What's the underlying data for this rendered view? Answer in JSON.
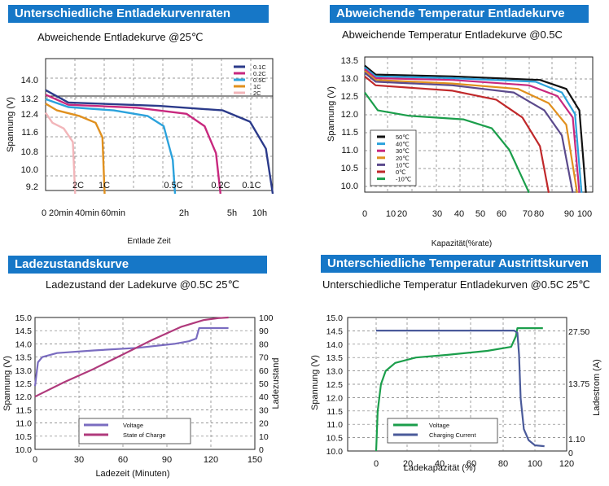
{
  "panels": [
    {
      "banner": "Unterschiedliche Entladekurvenraten",
      "subtitle": "Abweichende Entladekurve @25℃",
      "chart_data": {
        "type": "line",
        "title": "Abweichende Entladekurve @25℃",
        "xlabel": "Entlade Zeit",
        "ylabel": "Spannung (V)",
        "x_tick_labels": [
          "0",
          "20min",
          "40min",
          "60min",
          "2h",
          "5h",
          "10h"
        ],
        "y_tick_labels": [
          "14.0",
          "13.2",
          "12.4",
          "11.6",
          "10.8",
          "10.0",
          "9.2"
        ],
        "y_ticks": [
          14.0,
          13.2,
          12.4,
          11.6,
          10.8,
          10.0,
          9.2
        ],
        "ylim": [
          9.0,
          15.0
        ],
        "legend": [
          "0.1C",
          "0.2C",
          "0.5C",
          "1C",
          "2C"
        ],
        "legend_position": "top-right",
        "annotations": [
          "2C",
          "1C",
          "0.5C",
          "0.2C",
          "0.1C"
        ],
        "series": [
          {
            "name": "0.1C",
            "color": "#2b3a8a",
            "x": [
              0,
              0.1,
              0.5,
              0.78,
              0.9,
              0.97,
              1.0
            ],
            "y": [
              13.6,
              13.05,
              12.9,
              12.7,
              12.2,
              11.0,
              9.0
            ]
          },
          {
            "name": "0.2C",
            "color": "#c8287e",
            "x": [
              0,
              0.1,
              0.4,
              0.62,
              0.7,
              0.75,
              0.77
            ],
            "y": [
              13.4,
              12.95,
              12.82,
              12.55,
              12.0,
              10.8,
              9.0
            ]
          },
          {
            "name": "0.5C",
            "color": "#2ba2dc",
            "x": [
              0,
              0.1,
              0.3,
              0.45,
              0.52,
              0.56,
              0.57
            ],
            "y": [
              13.2,
              12.85,
              12.7,
              12.45,
              12.0,
              10.5,
              9.0
            ]
          },
          {
            "name": "1C",
            "color": "#e0901e",
            "x": [
              0,
              0.05,
              0.15,
              0.22,
              0.25,
              0.26
            ],
            "y": [
              13.0,
              12.7,
              12.45,
              12.15,
              11.5,
              9.0
            ]
          },
          {
            "name": "2C",
            "color": "#f2b5b9",
            "x": [
              0,
              0.03,
              0.08,
              0.12,
              0.13
            ],
            "y": [
              12.6,
              12.15,
              11.9,
              11.3,
              9.0
            ]
          }
        ],
        "grid": true
      }
    },
    {
      "banner": "Abweichende Temperatur Entladekurve",
      "subtitle": "Abweichende Temperatur Entladekurve @0.5C",
      "chart_data": {
        "type": "line",
        "title": "Abweichende Temperatur Entladekurve @0.5C",
        "xlabel": "Kapazität(%rate)",
        "ylabel": "Spannung (V)",
        "x_tick_labels": [
          "0",
          "10",
          "20",
          "30",
          "40",
          "50",
          "60",
          "70",
          "80",
          "90",
          "100"
        ],
        "x_ticks": [
          0,
          10,
          20,
          30,
          40,
          50,
          60,
          70,
          80,
          90,
          100
        ],
        "xlim": [
          0,
          105
        ],
        "y_tick_labels": [
          "13.5",
          "13.0",
          "12.5",
          "12.0",
          "11.5",
          "11.0",
          "10.5",
          "10.0"
        ],
        "y_ticks": [
          13.5,
          13.0,
          12.5,
          12.0,
          11.5,
          11.0,
          10.5,
          10.0
        ],
        "ylim": [
          9.8,
          13.7
        ],
        "legend": [
          "50℃",
          "40℃",
          "30℃",
          "20℃",
          "10℃",
          "0℃",
          "-10℃"
        ],
        "legend_position": "bottom-left",
        "series": [
          {
            "name": "50℃",
            "color": "#111111",
            "x": [
              0,
              5,
              40,
              80,
              92,
              98,
              101
            ],
            "y": [
              13.35,
              13.1,
              13.05,
              12.95,
              12.7,
              12.1,
              9.8
            ]
          },
          {
            "name": "40℃",
            "color": "#2ba2dc",
            "x": [
              0,
              5,
              40,
              78,
              90,
              96,
              99
            ],
            "y": [
              13.3,
              13.05,
              13.0,
              12.9,
              12.6,
              12.0,
              9.8
            ]
          },
          {
            "name": "30℃",
            "color": "#c8287e",
            "x": [
              0,
              5,
              40,
              75,
              88,
              95,
              98
            ],
            "y": [
              13.25,
              13.0,
              12.95,
              12.8,
              12.5,
              11.9,
              9.8
            ]
          },
          {
            "name": "20℃",
            "color": "#e0901e",
            "x": [
              0,
              5,
              40,
              70,
              84,
              92,
              97
            ],
            "y": [
              13.2,
              12.95,
              12.85,
              12.7,
              12.3,
              11.7,
              9.8
            ]
          },
          {
            "name": "10℃",
            "color": "#5b4a8c",
            "x": [
              0,
              5,
              40,
              68,
              82,
              90,
              95
            ],
            "y": [
              13.15,
              12.9,
              12.8,
              12.6,
              12.1,
              11.4,
              9.8
            ]
          },
          {
            "name": "0℃",
            "color": "#c0282a",
            "x": [
              0,
              5,
              40,
              60,
              72,
              80,
              84
            ],
            "y": [
              13.05,
              12.8,
              12.65,
              12.4,
              11.9,
              11.1,
              9.8
            ]
          },
          {
            "name": "-10℃",
            "color": "#1b9e4b",
            "x": [
              0,
              6,
              20,
              45,
              58,
              66,
              72,
              75
            ],
            "y": [
              12.6,
              12.1,
              11.95,
              11.85,
              11.6,
              11.0,
              10.2,
              9.8
            ]
          }
        ],
        "grid": true
      }
    },
    {
      "banner": "Ladezustandskurve",
      "subtitle": "Ladezustand der Ladekurve  @0.5C 25℃",
      "chart_data": {
        "type": "line",
        "title": "Ladezustand der Ladekurve  @0.5C 25℃",
        "xlabel": "Ladezeit (Minuten)",
        "ylabel": "Spannung (V)",
        "y2label": "Ladezustand",
        "x_ticks": [
          0,
          30,
          60,
          90,
          120,
          150
        ],
        "x_tick_labels": [
          "0",
          "30",
          "60",
          "90",
          "120",
          "150"
        ],
        "xlim": [
          0,
          150
        ],
        "y_ticks": [
          10.0,
          10.5,
          11.0,
          11.5,
          12.0,
          12.5,
          13.0,
          13.5,
          14.0,
          14.5,
          15.0
        ],
        "y_tick_labels": [
          "10.0",
          "10.5",
          "11.0",
          "11.5",
          "12.0",
          "12.5",
          "13.0",
          "13.5",
          "14.0",
          "14.5",
          "15.0"
        ],
        "ylim": [
          10.0,
          15.0
        ],
        "y2_ticks": [
          0,
          10,
          20,
          30,
          40,
          50,
          60,
          70,
          80,
          90,
          100
        ],
        "y2_tick_labels": [
          "0",
          "10",
          "20",
          "30",
          "40",
          "50",
          "60",
          "70",
          "80",
          "90",
          "100"
        ],
        "y2lim": [
          0,
          100
        ],
        "legend": [
          "Voltage",
          "State of Charge"
        ],
        "legend_position": "bottom-center",
        "series": [
          {
            "name": "Voltage",
            "color": "#7a6cc0",
            "axis": "left",
            "x": [
              0,
              2,
              5,
              15,
              40,
              70,
              95,
              105,
              110,
              112,
              132
            ],
            "y": [
              12.4,
              13.3,
              13.5,
              13.65,
              13.75,
              13.85,
              14.0,
              14.1,
              14.2,
              14.6,
              14.6
            ]
          },
          {
            "name": "State of Charge",
            "color": "#b03a7c",
            "axis": "right",
            "x": [
              0,
              20,
              40,
              60,
              80,
              100,
              115,
              125,
              132
            ],
            "y": [
              40,
              51,
              61,
              72,
              83,
              93,
              98,
              99.5,
              100
            ]
          }
        ],
        "grid": true
      }
    },
    {
      "banner": "Unterschiedliche Temperatur Austrittskurven",
      "subtitle": "Unterschiedliche Temperatur Entladekurven @0.5C 25℃",
      "chart_data": {
        "type": "line",
        "title": "Unterschiedliche Temperatur Entladekurven @0.5C 25℃",
        "xlabel": "Ladekapazität (%)",
        "ylabel": "Spannung (V)",
        "y2label": "Ladestrom (A)",
        "x_ticks": [
          0,
          20,
          40,
          60,
          80,
          100,
          120
        ],
        "x_tick_labels": [
          "0",
          "20",
          "40",
          "60",
          "80",
          "100",
          "120"
        ],
        "xlim": [
          -10,
          120
        ],
        "y_ticks": [
          10.0,
          10.5,
          11.0,
          11.5,
          12.0,
          12.5,
          13.0,
          13.5,
          14.0,
          14.5,
          15.0
        ],
        "y_tick_labels": [
          "10.0",
          "10.5",
          "11.0",
          "11.5",
          "12.0",
          "12.5",
          "13.0",
          "13.5",
          "14.0",
          "14.5",
          "15.0"
        ],
        "ylim": [
          10.0,
          15.0
        ],
        "y2_ticks": [
          27.5,
          13.75,
          1.1,
          0
        ],
        "y2_tick_labels": [
          "27.50",
          "13.75",
          "1.10",
          "0"
        ],
        "y2lim": [
          0,
          30.5
        ],
        "legend": [
          "Voltage",
          "Charging Current"
        ],
        "legend_position": "bottom-center",
        "series": [
          {
            "name": "Voltage",
            "color": "#1b9e4b",
            "axis": "left",
            "x": [
              0,
              1,
              3,
              6,
              12,
              25,
              45,
              70,
              85,
              88,
              89,
              105
            ],
            "y": [
              10.0,
              11.5,
              12.5,
              13.0,
              13.3,
              13.5,
              13.6,
              13.75,
              13.9,
              14.3,
              14.6,
              14.6
            ]
          },
          {
            "name": "Charging Current",
            "color": "#4a5a9a",
            "axis": "right",
            "x": [
              0,
              20,
              60,
              87,
              89,
              90,
              91,
              93,
              96,
              100,
              106
            ],
            "y": [
              27.5,
              27.5,
              27.5,
              27.5,
              27.0,
              22.0,
              12.0,
              5.0,
              2.5,
              1.3,
              1.1
            ]
          }
        ],
        "grid": true
      }
    }
  ]
}
